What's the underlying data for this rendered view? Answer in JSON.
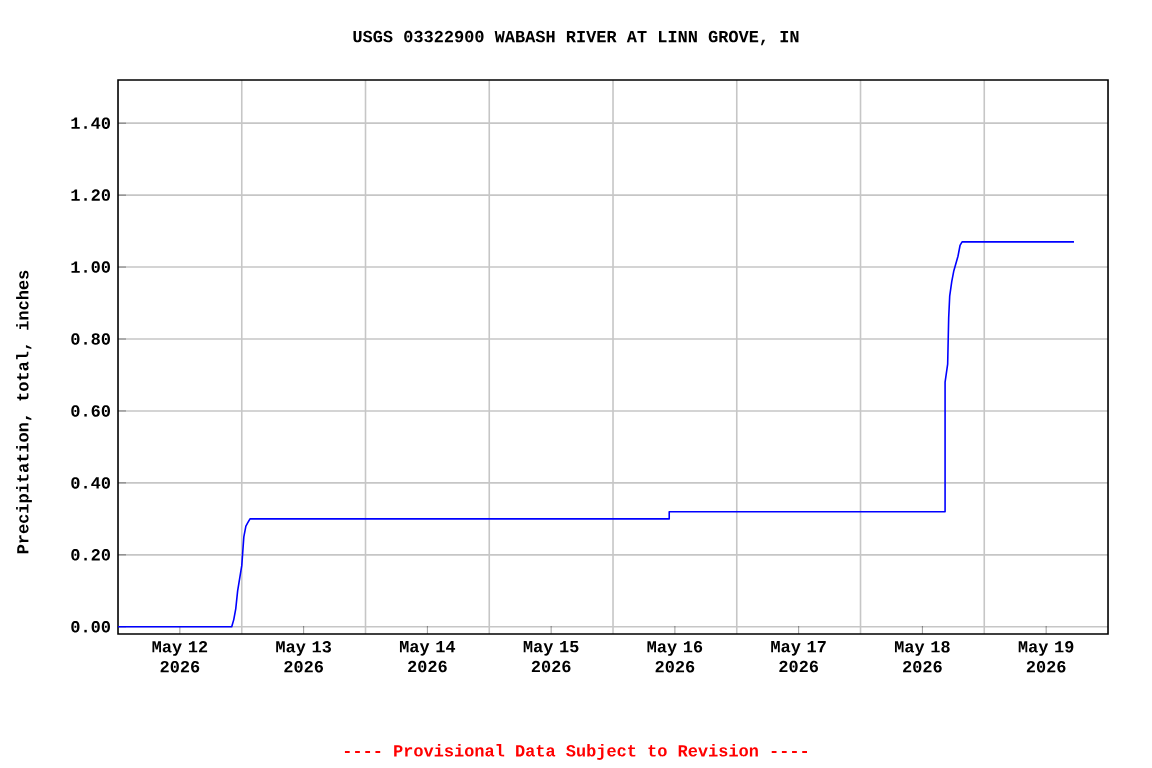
{
  "chart_data": {
    "type": "line",
    "title": "USGS 03322900 WABASH RIVER AT LINN GROVE, IN",
    "ylabel": "Precipitation, total, inches",
    "x": [
      "2026-05-12T00:00",
      "2026-05-12T22:03",
      "2026-05-12T22:27",
      "2026-05-12T22:50",
      "2026-05-12T23:12",
      "2026-05-13T00:00",
      "2026-05-13T00:24",
      "2026-05-13T00:48",
      "2026-05-13T01:12",
      "2026-05-13T01:36",
      "2026-05-16T10:54",
      "2026-05-16T10:54",
      "2026-05-18T16:24",
      "2026-05-18T16:24",
      "2026-05-18T16:54",
      "2026-05-18T17:06",
      "2026-05-18T17:18",
      "2026-05-18T17:42",
      "2026-05-18T18:06",
      "2026-05-18T18:30",
      "2026-05-18T18:54",
      "2026-05-18T19:18",
      "2026-05-18T19:42",
      "2026-05-19T17:24"
    ],
    "series": [
      {
        "color": "#0000ff",
        "values": [
          0.0,
          0.0,
          0.02,
          0.05,
          0.1,
          0.17,
          0.25,
          0.28,
          0.29,
          0.3,
          0.3,
          0.32,
          0.32,
          0.68,
          0.73,
          0.86,
          0.92,
          0.96,
          0.99,
          1.01,
          1.03,
          1.06,
          1.07,
          1.07
        ]
      }
    ],
    "xlim": [
      "2026-05-12T00:00",
      "2026-05-20T00:00"
    ],
    "xticks": [
      {
        "value": "2026-05-12T12:00",
        "label": "May 12 2026"
      },
      {
        "value": "2026-05-13T12:00",
        "label": "May 13 2026"
      },
      {
        "value": "2026-05-14T12:00",
        "label": "May 14 2026"
      },
      {
        "value": "2026-05-15T12:00",
        "label": "May 15 2026"
      },
      {
        "value": "2026-05-16T12:00",
        "label": "May 16 2026"
      },
      {
        "value": "2026-05-17T12:00",
        "label": "May 17 2026"
      },
      {
        "value": "2026-05-18T12:00",
        "label": "May 18 2026"
      },
      {
        "value": "2026-05-19T12:00",
        "label": "May 19 2026"
      }
    ],
    "ylim": [
      -0.02,
      1.52
    ],
    "yticks": [
      {
        "value": 0,
        "label": "0.00"
      },
      {
        "value": 0.2,
        "label": "0.20"
      },
      {
        "value": 0.4,
        "label": "0.40"
      },
      {
        "value": 0.6,
        "label": "0.60"
      },
      {
        "value": 0.8,
        "label": "0.80"
      },
      {
        "value": 1.0,
        "label": "1.00"
      },
      {
        "value": 1.2,
        "label": "1.20"
      },
      {
        "value": 1.4,
        "label": "1.40"
      }
    ],
    "grid": true,
    "marker": "none",
    "line_style": "solid",
    "annotations": [
      "---- Provisional Data Subject to Revision ----"
    ]
  }
}
